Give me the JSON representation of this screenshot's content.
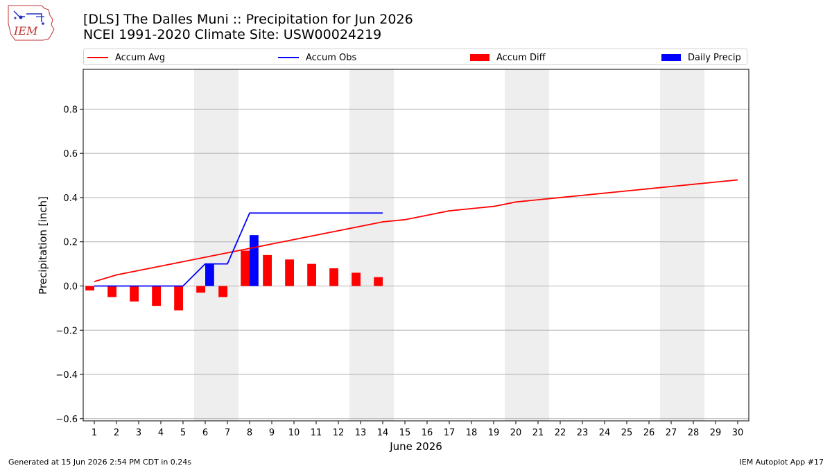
{
  "header": {
    "title_line1": "[DLS] The Dalles Muni :: Precipitation for Jun 2026",
    "title_line2": "NCEI 1991-2020 Climate Site: USW00024219"
  },
  "logo": {
    "text": "IEM"
  },
  "footer": {
    "generated": "Generated at 15 Jun 2026 2:54 PM CDT in 0.24s",
    "app": "IEM Autoplot App #17"
  },
  "colors": {
    "accum_avg": "#ff0000",
    "accum_obs": "#0000ff",
    "accum_diff": "#ff0000",
    "daily_precip": "#0000ff",
    "weekend_shade": "#eeeeee",
    "grid": "#b0b0b0"
  },
  "chart_data": {
    "type": "bar",
    "xlabel": "June 2026",
    "ylabel": "Precipitation [inch]",
    "xlim": [
      0.5,
      30.5
    ],
    "ylim": [
      -0.61,
      0.98
    ],
    "yticks": [
      -0.6,
      -0.4,
      -0.2,
      0.0,
      0.2,
      0.4,
      0.6,
      0.8
    ],
    "ytick_labels": [
      "−0.6",
      "−0.4",
      "−0.2",
      "0.0",
      "0.2",
      "0.4",
      "0.6",
      "0.8"
    ],
    "days": [
      1,
      2,
      3,
      4,
      5,
      6,
      7,
      8,
      9,
      10,
      11,
      12,
      13,
      14,
      15,
      16,
      17,
      18,
      19,
      20,
      21,
      22,
      23,
      24,
      25,
      26,
      27,
      28,
      29,
      30
    ],
    "weekend_days": [
      6,
      7,
      13,
      14,
      20,
      21,
      27,
      28
    ],
    "grid": "y",
    "legend_position": "top",
    "series": [
      {
        "name": "Accum Avg",
        "kind": "line",
        "x": [
          1,
          2,
          3,
          4,
          5,
          6,
          7,
          8,
          9,
          10,
          11,
          12,
          13,
          14,
          15,
          16,
          17,
          18,
          19,
          20,
          21,
          22,
          23,
          24,
          25,
          26,
          27,
          28,
          29,
          30
        ],
        "values": [
          0.02,
          0.05,
          0.07,
          0.09,
          0.11,
          0.13,
          0.15,
          0.17,
          0.19,
          0.21,
          0.23,
          0.25,
          0.27,
          0.29,
          0.3,
          0.32,
          0.34,
          0.35,
          0.36,
          0.38,
          0.39,
          0.4,
          0.41,
          0.42,
          0.43,
          0.44,
          0.45,
          0.46,
          0.47,
          0.48
        ]
      },
      {
        "name": "Accum Obs",
        "kind": "line",
        "x": [
          1,
          2,
          3,
          4,
          5,
          6,
          7,
          8,
          9,
          10,
          11,
          12,
          13,
          14
        ],
        "values": [
          0,
          0,
          0,
          0,
          0,
          0.1,
          0.1,
          0.33,
          0.33,
          0.33,
          0.33,
          0.33,
          0.33,
          0.33
        ]
      },
      {
        "name": "Accum Diff",
        "kind": "bar",
        "offset": -0.2,
        "x": [
          1,
          2,
          3,
          4,
          5,
          6,
          7,
          8,
          9,
          10,
          11,
          12,
          13,
          14
        ],
        "values": [
          -0.02,
          -0.05,
          -0.07,
          -0.09,
          -0.11,
          -0.03,
          -0.05,
          0.16,
          0.14,
          0.12,
          0.1,
          0.08,
          0.06,
          0.04
        ]
      },
      {
        "name": "Daily Precip",
        "kind": "bar",
        "offset": 0.2,
        "x": [
          1,
          2,
          3,
          4,
          5,
          6,
          7,
          8,
          9,
          10,
          11,
          12,
          13,
          14
        ],
        "values": [
          0,
          0,
          0,
          0,
          0,
          0.1,
          0,
          0.23,
          0,
          0,
          0,
          0,
          0,
          0
        ]
      }
    ]
  }
}
